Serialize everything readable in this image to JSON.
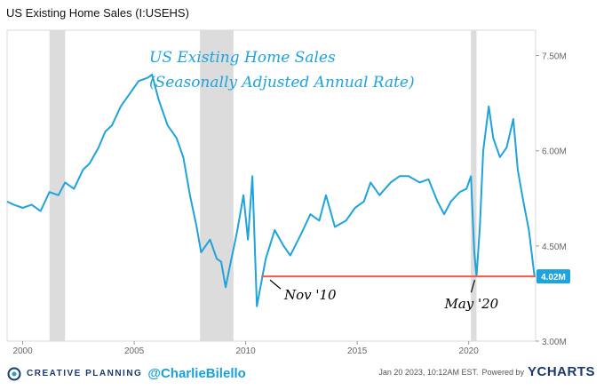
{
  "title": "US Existing Home Sales (I:USEHS)",
  "chart_data": {
    "type": "line",
    "title": "US Existing Home Sales",
    "subtitle": "(Seasonally Adjusted Annual Rate)",
    "x_ticks": [
      "2000",
      "2005",
      "2010",
      "2015",
      "2020"
    ],
    "y_ticks": [
      "3.00M",
      "4.50M",
      "6.00M",
      "7.50M"
    ],
    "ylim": [
      3.0,
      7.9
    ],
    "xlim": [
      1999.3,
      2023.0
    ],
    "recessions": [
      [
        2001.2,
        2001.9
      ],
      [
        2007.95,
        2009.45
      ],
      [
        2020.1,
        2020.35
      ]
    ],
    "series": [
      {
        "color": "#1ea3dc",
        "points": [
          [
            1999.3,
            5.2
          ],
          [
            1999.6,
            5.15
          ],
          [
            2000.0,
            5.1
          ],
          [
            2000.4,
            5.15
          ],
          [
            2000.8,
            5.05
          ],
          [
            2001.2,
            5.35
          ],
          [
            2001.6,
            5.3
          ],
          [
            2001.9,
            5.5
          ],
          [
            2002.3,
            5.4
          ],
          [
            2002.7,
            5.7
          ],
          [
            2003.0,
            5.8
          ],
          [
            2003.4,
            6.05
          ],
          [
            2003.7,
            6.3
          ],
          [
            2004.0,
            6.4
          ],
          [
            2004.4,
            6.7
          ],
          [
            2004.8,
            6.9
          ],
          [
            2005.2,
            7.1
          ],
          [
            2005.6,
            7.15
          ],
          [
            2005.8,
            7.2
          ],
          [
            2006.1,
            6.8
          ],
          [
            2006.5,
            6.4
          ],
          [
            2006.9,
            6.2
          ],
          [
            2007.2,
            5.9
          ],
          [
            2007.5,
            5.3
          ],
          [
            2007.8,
            4.8
          ],
          [
            2008.0,
            4.4
          ],
          [
            2008.4,
            4.6
          ],
          [
            2008.7,
            4.3
          ],
          [
            2008.9,
            4.25
          ],
          [
            2009.1,
            3.85
          ],
          [
            2009.3,
            4.2
          ],
          [
            2009.6,
            4.7
          ],
          [
            2009.9,
            5.3
          ],
          [
            2010.1,
            4.6
          ],
          [
            2010.3,
            5.6
          ],
          [
            2010.5,
            3.55
          ],
          [
            2010.9,
            4.3
          ],
          [
            2011.3,
            4.75
          ],
          [
            2011.7,
            4.5
          ],
          [
            2012.0,
            4.35
          ],
          [
            2012.5,
            4.7
          ],
          [
            2012.9,
            5.0
          ],
          [
            2013.3,
            4.9
          ],
          [
            2013.6,
            5.3
          ],
          [
            2014.0,
            4.8
          ],
          [
            2014.5,
            4.9
          ],
          [
            2014.9,
            5.1
          ],
          [
            2015.3,
            5.2
          ],
          [
            2015.6,
            5.5
          ],
          [
            2016.0,
            5.3
          ],
          [
            2016.5,
            5.5
          ],
          [
            2016.9,
            5.6
          ],
          [
            2017.3,
            5.6
          ],
          [
            2017.8,
            5.5
          ],
          [
            2018.2,
            5.55
          ],
          [
            2018.6,
            5.2
          ],
          [
            2018.9,
            5.0
          ],
          [
            2019.2,
            5.2
          ],
          [
            2019.6,
            5.35
          ],
          [
            2019.9,
            5.4
          ],
          [
            2020.1,
            5.6
          ],
          [
            2020.25,
            4.4
          ],
          [
            2020.35,
            4.02
          ],
          [
            2020.5,
            4.8
          ],
          [
            2020.65,
            6.0
          ],
          [
            2020.9,
            6.7
          ],
          [
            2021.1,
            6.2
          ],
          [
            2021.4,
            5.9
          ],
          [
            2021.7,
            6.05
          ],
          [
            2022.0,
            6.5
          ],
          [
            2022.2,
            5.7
          ],
          [
            2022.45,
            5.2
          ],
          [
            2022.7,
            4.75
          ],
          [
            2022.95,
            4.02
          ]
        ]
      }
    ],
    "reference_line": {
      "value": 4.02,
      "label": "4.02M",
      "color": "#f05a4f"
    },
    "annotations": [
      {
        "text": "Nov '10",
        "x": 2010.85,
        "y": 3.7
      },
      {
        "text": "May '20",
        "x": 2020.35,
        "y": 3.7
      }
    ]
  },
  "footer": {
    "brand": "CREATIVE PLANNING",
    "handle": "@CharlieBilello",
    "timestamp": "Jan 20 2023, 10:12AM EST.",
    "powered": "Powered by",
    "ycharts": "YCHARTS"
  }
}
